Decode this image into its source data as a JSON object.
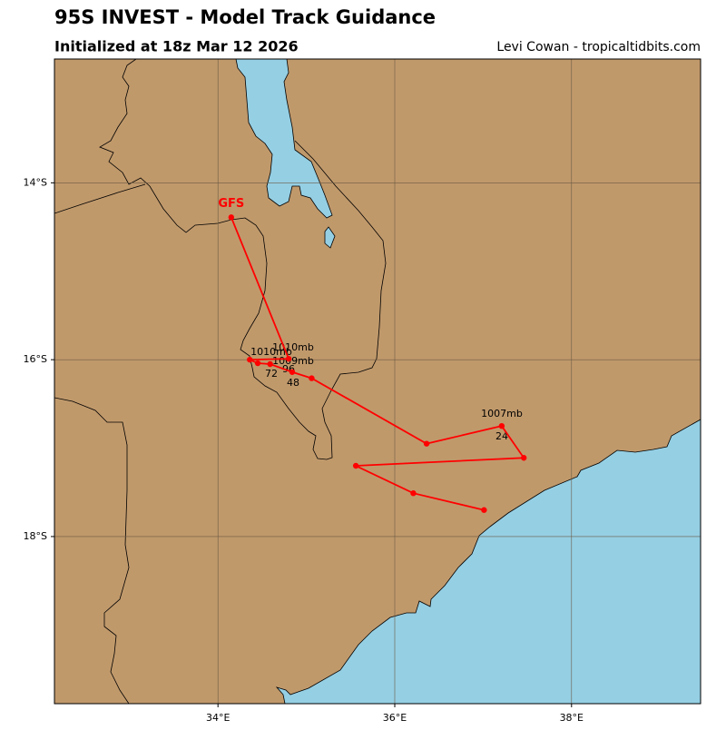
{
  "header": {
    "title": "95S INVEST - Model Track Guidance",
    "subtitle": "Initialized at 18z Mar 12 2026",
    "credit": "Levi Cowan - tropicaltidbits.com"
  },
  "map": {
    "lonlim": [
      32.15,
      39.46
    ],
    "latlim": [
      -12.6,
      -19.89
    ],
    "xticks": [
      {
        "value": 34,
        "label": "34°E"
      },
      {
        "value": 36,
        "label": "36°E"
      },
      {
        "value": 38,
        "label": "38°E"
      }
    ],
    "yticks": [
      {
        "value": -14,
        "label": "14°S"
      },
      {
        "value": -16,
        "label": "16°S"
      },
      {
        "value": -18,
        "label": "18°S"
      }
    ],
    "grid": true,
    "track": {
      "name": "GFS",
      "color": "#ff0000",
      "lon": [
        34.15,
        34.8,
        34.36,
        34.45,
        34.59,
        34.84,
        35.06,
        36.36,
        37.21,
        37.46,
        35.56,
        36.21,
        37.01
      ],
      "lat": [
        -14.39,
        -15.99,
        -16.0,
        -16.04,
        -16.05,
        -16.14,
        -16.21,
        -16.95,
        -16.75,
        -17.11,
        -17.2,
        -17.51,
        -17.7
      ]
    },
    "pressure_labels": [
      "1010mb",
      "1010mb",
      "1009mb",
      "1007mb"
    ],
    "hour_labels": [
      "96",
      "72",
      "48",
      "24"
    ]
  }
}
